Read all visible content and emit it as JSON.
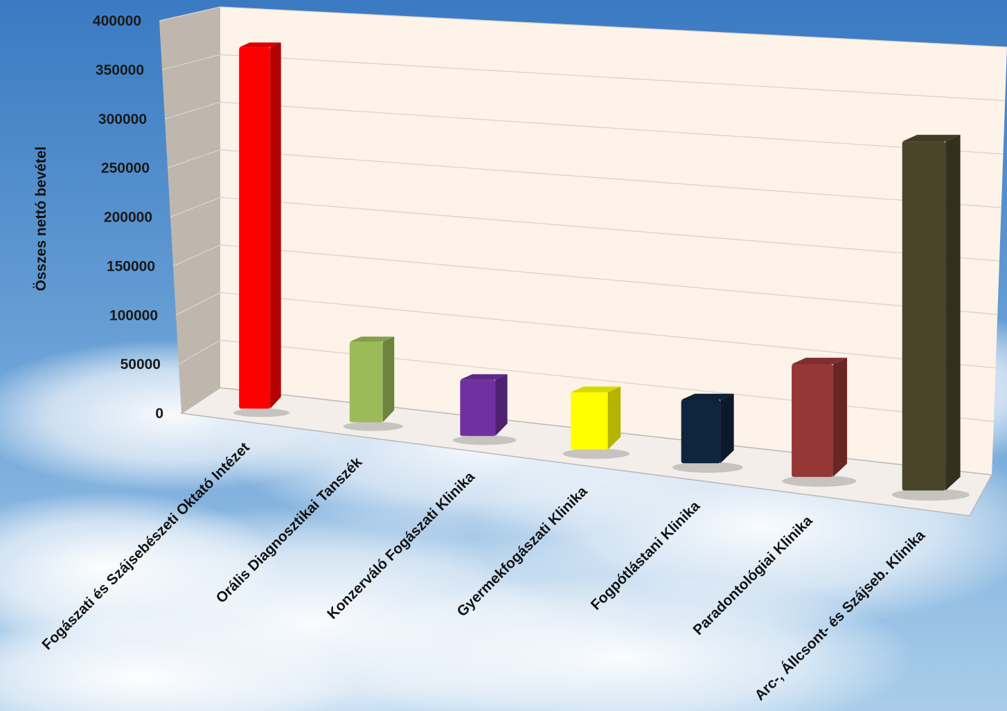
{
  "chart_data": {
    "type": "bar",
    "title": "",
    "xlabel": "",
    "ylabel": "Összes nettó bevétel",
    "ylim": [
      0,
      400000
    ],
    "yticks": [
      0,
      50000,
      100000,
      150000,
      200000,
      250000,
      300000,
      350000,
      400000
    ],
    "grid": true,
    "legend": "none",
    "style": "3d-column",
    "categories": [
      "Fogászati és Szájsebészeti Oktató Intézet",
      "Orális Diagnosztikai Tanszék",
      "Konzerváló Fogászati Klinika",
      "Gyermekfogászati Klinika",
      "Fogpótlástani Klinika",
      "Paradontológiai Klinika",
      "Arc-, Állcsont- és Szájseb. Klinika"
    ],
    "values": [
      365000,
      80000,
      55000,
      55000,
      60000,
      105000,
      320000
    ],
    "colors": [
      "#ff0000",
      "#9bbb59",
      "#7030a0",
      "#ffff00",
      "#0f243e",
      "#953735",
      "#4a452a"
    ]
  },
  "colors": {
    "back_wall": "#fdf3e8",
    "side_wall": "#bfb7ae",
    "floor": "#f3eee9",
    "sky_top": "#3f7fc4",
    "sky_bottom": "#9cc3e6"
  }
}
